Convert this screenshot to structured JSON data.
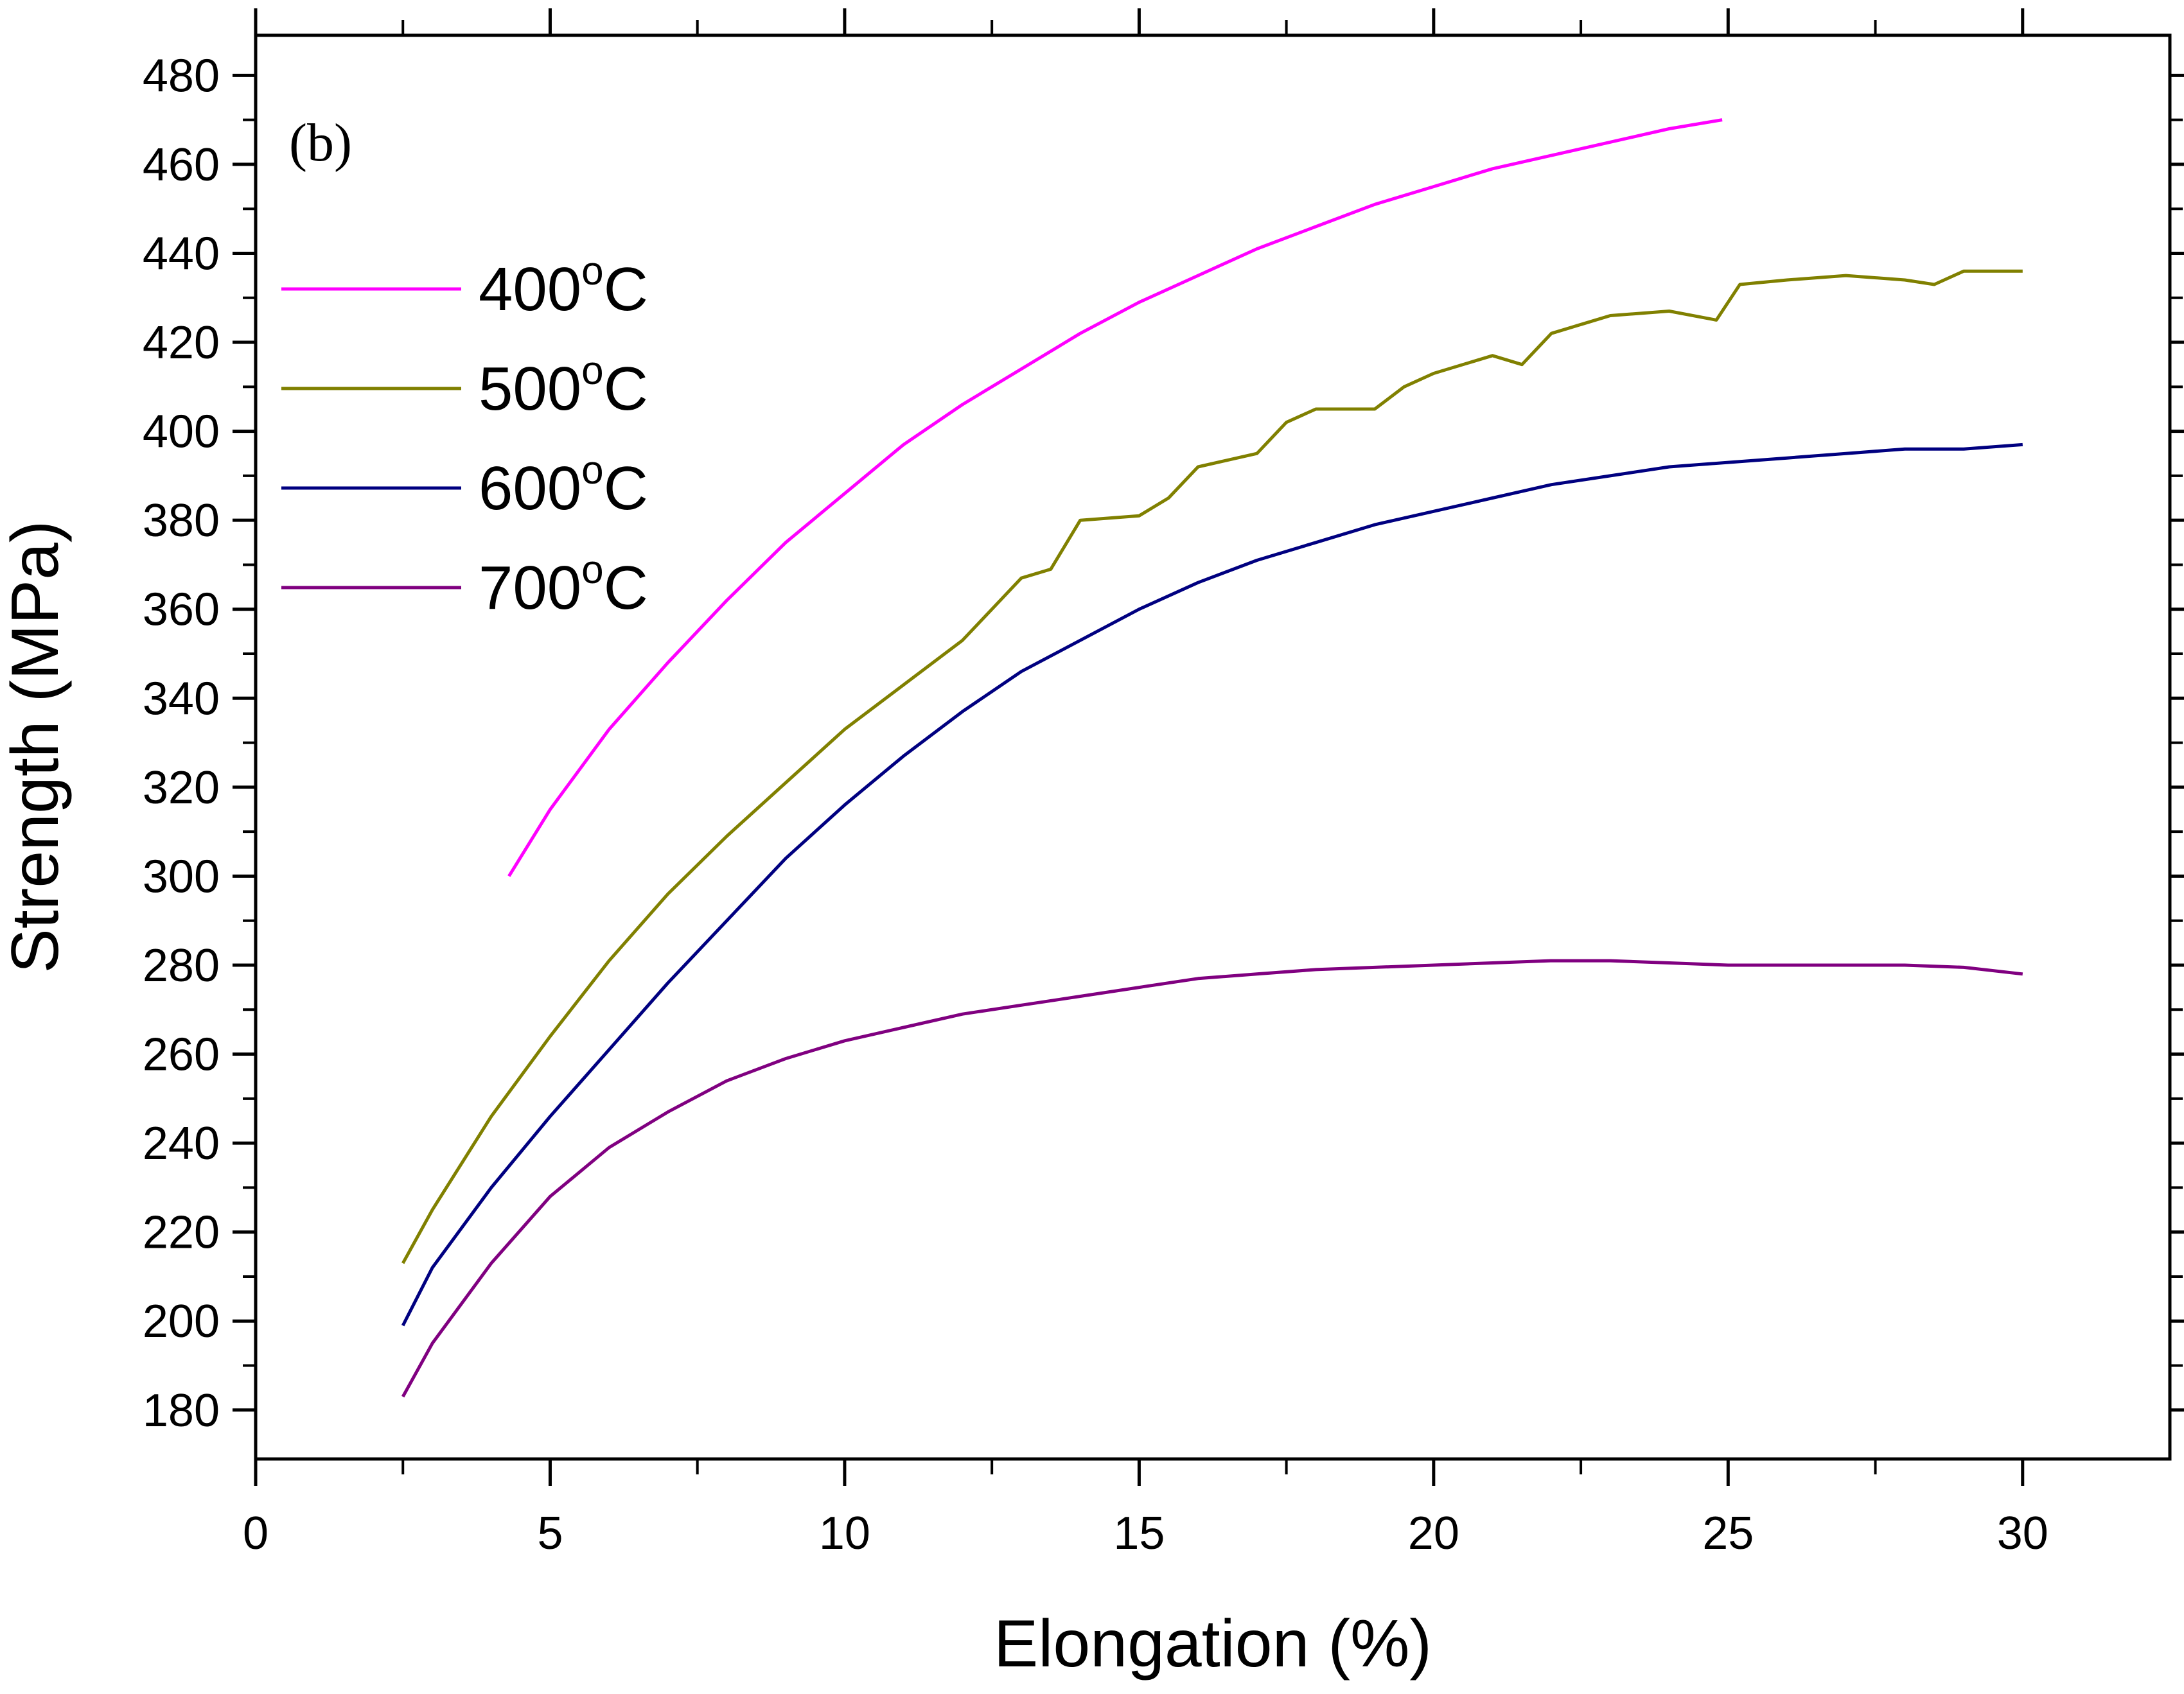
{
  "chart_data": {
    "type": "line",
    "panel_label": "(b)",
    "xlabel": "Elongation (%)",
    "ylabel": "Strength (MPa)",
    "xlim": [
      0,
      32.5
    ],
    "ylim": [
      169,
      489
    ],
    "x_ticks": [
      0,
      5,
      10,
      15,
      20,
      25,
      30
    ],
    "y_ticks": [
      180,
      200,
      220,
      240,
      260,
      280,
      300,
      320,
      340,
      360,
      380,
      400,
      420,
      440,
      460,
      480
    ],
    "legend_position": "upper-left",
    "series": [
      {
        "name": "400",
        "unit_sup": "o",
        "unit": "C",
        "color": "#ff00ff",
        "x": [
          4.3,
          5,
          6,
          7,
          8,
          9,
          10,
          11,
          12,
          13,
          14,
          15,
          16,
          17,
          18,
          19,
          20,
          21,
          22,
          23,
          24,
          24.9
        ],
        "y": [
          300,
          315,
          333,
          348,
          362,
          375,
          386,
          397,
          406,
          414,
          422,
          429,
          435,
          441,
          446,
          451,
          455,
          459,
          462,
          465,
          468,
          470
        ]
      },
      {
        "name": "500",
        "unit_sup": "o",
        "unit": "C",
        "color": "#808000",
        "x": [
          2.5,
          3,
          4,
          5,
          6,
          7,
          8,
          9,
          10,
          11,
          12,
          12.5,
          13,
          13.5,
          14,
          15,
          15.5,
          16,
          17,
          17.5,
          18,
          19,
          19.5,
          20,
          21,
          21.5,
          22,
          22.5,
          23,
          24,
          24.8,
          25.2,
          26,
          27,
          28,
          28.5,
          29,
          30
        ],
        "y": [
          213,
          225,
          246,
          264,
          281,
          296,
          309,
          321,
          333,
          343,
          353,
          360,
          367,
          369,
          380,
          381,
          385,
          392,
          395,
          402,
          405,
          405,
          410,
          413,
          417,
          415,
          422,
          424,
          426,
          427,
          425,
          433,
          434,
          435,
          434,
          433,
          436,
          436
        ]
      },
      {
        "name": "600",
        "unit_sup": "o",
        "unit": "C",
        "color": "#000080",
        "x": [
          2.5,
          3,
          4,
          5,
          6,
          7,
          8,
          9,
          10,
          11,
          12,
          13,
          14,
          15,
          16,
          17,
          18,
          19,
          20,
          21,
          22,
          23,
          24,
          25,
          26,
          27,
          28,
          29,
          30
        ],
        "y": [
          199,
          212,
          230,
          246,
          261,
          276,
          290,
          304,
          316,
          327,
          337,
          346,
          353,
          360,
          366,
          371,
          375,
          379,
          382,
          385,
          388,
          390,
          392,
          393,
          394,
          395,
          396,
          396,
          397
        ]
      },
      {
        "name": "700",
        "unit_sup": "o",
        "unit": "C",
        "color": "#800080",
        "x": [
          2.5,
          3,
          4,
          5,
          6,
          7,
          8,
          9,
          10,
          11,
          12,
          13,
          14,
          15,
          16,
          17,
          18,
          19,
          20,
          21,
          22,
          23,
          24,
          25,
          26,
          27,
          28,
          29,
          30
        ],
        "y": [
          183,
          195,
          213,
          228,
          239,
          247,
          254,
          259,
          263,
          266,
          269,
          271,
          273,
          275,
          277,
          278,
          279,
          279.5,
          280,
          280.5,
          281,
          281,
          280.5,
          280,
          280,
          280,
          280,
          279.5,
          278
        ]
      }
    ]
  }
}
